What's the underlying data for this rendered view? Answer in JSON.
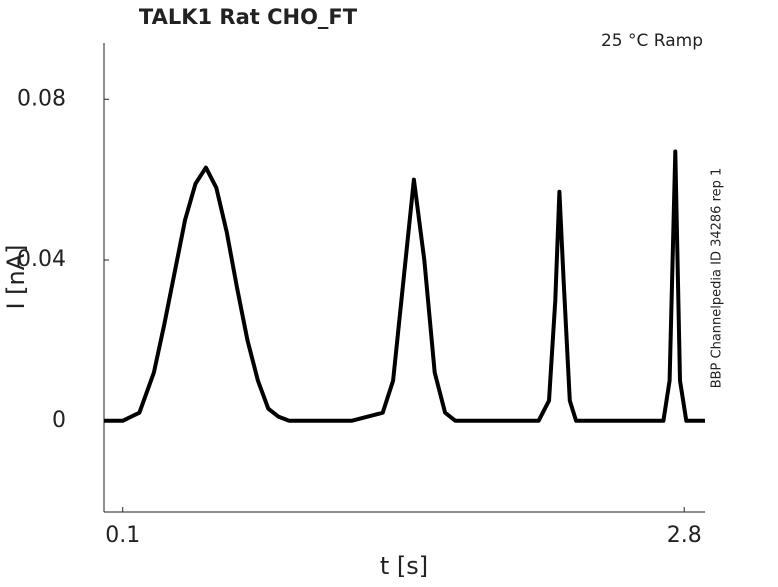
{
  "chart_data": {
    "type": "line",
    "title": "TALK1  Rat  CHO_FT",
    "subtitle": "25 °C  Ramp",
    "annotation": "BBP Channelpedia ID 34286 rep 1",
    "x_label": "t [s]",
    "y_label": "I [nA]",
    "x": [
      0.01,
      0.1,
      0.18,
      0.25,
      0.3,
      0.35,
      0.4,
      0.45,
      0.5,
      0.55,
      0.6,
      0.65,
      0.7,
      0.75,
      0.8,
      0.85,
      0.9,
      1.2,
      1.35,
      1.4,
      1.45,
      1.5,
      1.55,
      1.6,
      1.65,
      1.7,
      2.1,
      2.15,
      2.18,
      2.2,
      2.22,
      2.25,
      2.28,
      2.7,
      2.73,
      2.757,
      2.78,
      2.81,
      2.9
    ],
    "series": [
      {
        "name": "I",
        "color": "#000000",
        "values": [
          0,
          0,
          0.002,
          0.012,
          0.024,
          0.037,
          0.05,
          0.059,
          0.063,
          0.058,
          0.047,
          0.033,
          0.02,
          0.01,
          0.003,
          0.001,
          0,
          0,
          0.002,
          0.01,
          0.035,
          0.06,
          0.04,
          0.012,
          0.002,
          0,
          0,
          0.005,
          0.03,
          0.057,
          0.035,
          0.005,
          0,
          0,
          0.01,
          0.067,
          0.01,
          0,
          0
        ]
      }
    ],
    "xlim": [
      0.01,
      2.9
    ],
    "ylim": [
      -0.0227,
      0.094
    ],
    "xticks": [
      0.1,
      2.8
    ],
    "yticks": [
      0,
      0.04,
      0.08
    ],
    "grid": false
  }
}
